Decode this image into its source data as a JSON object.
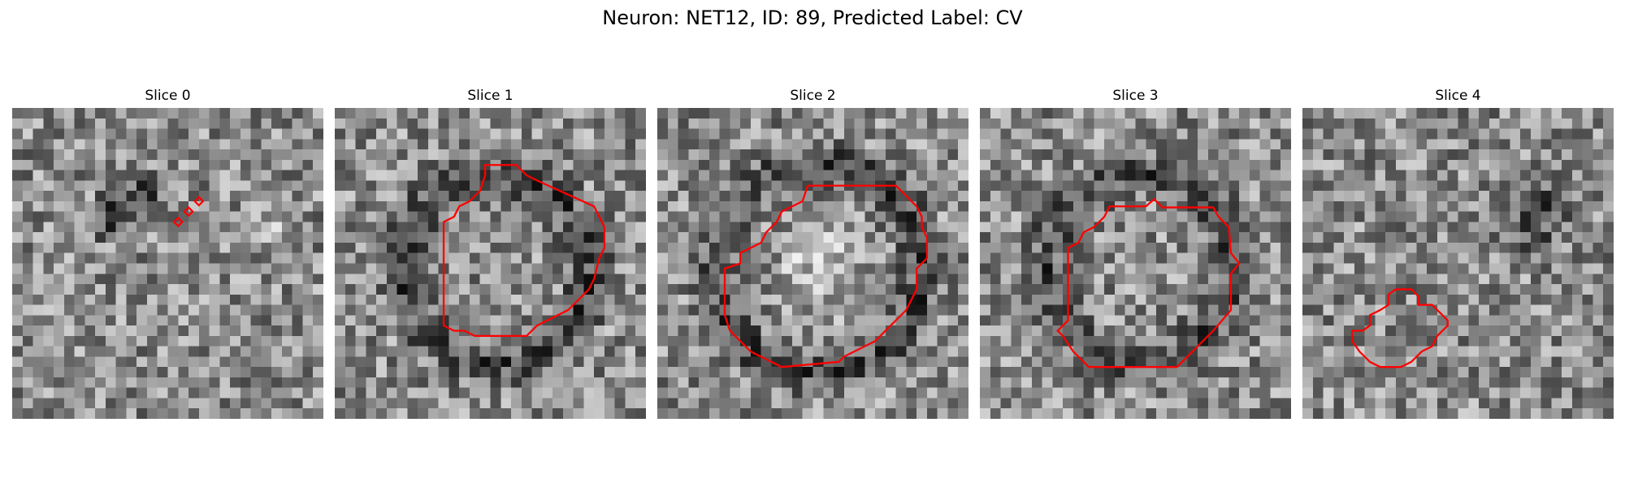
{
  "figure": {
    "title": "Neuron: NET12, ID: 89, Predicted Label: CV"
  },
  "colors": {
    "contour": "#ff0000",
    "background": "#ffffff"
  },
  "grid": {
    "rows": 30,
    "cols": 30
  },
  "panels": [
    {
      "title": "Slice 0",
      "seed": 11,
      "dark_blobs": [
        [
          8,
          12,
          3.5
        ],
        [
          10,
          9,
          3
        ]
      ],
      "bright_blobs": [
        [
          12,
          25,
          3
        ]
      ]
    },
    {
      "title": "Slice 1",
      "seed": 23,
      "ring": [
        15,
        15,
        9,
        3
      ]
    },
    {
      "title": "Slice 2",
      "seed": 37,
      "ring": [
        15,
        15,
        10,
        3
      ],
      "bright_blobs": [
        [
          15,
          15,
          6
        ]
      ]
    },
    {
      "title": "Slice 3",
      "seed": 41,
      "ring": [
        15,
        15,
        9,
        3
      ]
    },
    {
      "title": "Slice 4",
      "seed": 59,
      "dark_blobs": [
        [
          10,
          22,
          5
        ]
      ]
    }
  ]
}
